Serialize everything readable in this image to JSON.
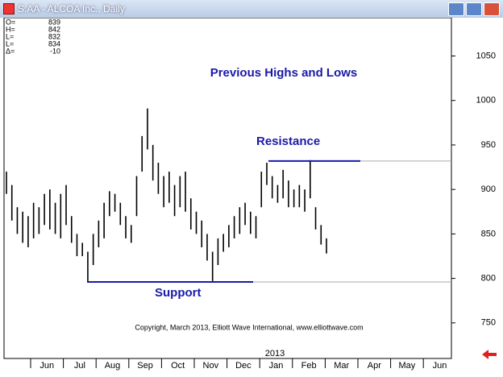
{
  "window_title": "S.AA - ALCOA Inc., Daily",
  "chart_data": {
    "type": "hilo",
    "title": "Previous Highs and Lows",
    "copyright": "Copyright, March 2013, Elliott Wave International, www.elliottwave.com",
    "info": [
      {
        "label": "O=",
        "value": "839"
      },
      {
        "label": "H=",
        "value": "842"
      },
      {
        "label": "L=",
        "value": "832"
      },
      {
        "label": "L=",
        "value": "834"
      },
      {
        "label": "Δ=",
        "value": "-10"
      }
    ],
    "months": [
      "Jun",
      "Jul",
      "Aug",
      "Sep",
      "Oct",
      "Nov",
      "Dec",
      "Jan",
      "Feb",
      "Mar",
      "Apr",
      "May",
      "Jun"
    ],
    "year_label": "2013",
    "levels": [
      {
        "label": "Resistance",
        "value": 932
      },
      {
        "label": "Support",
        "value": 796
      }
    ],
    "color": "#000000",
    "level_color": "#1a1aa8",
    "ylim": [
      710,
      1093
    ],
    "yticks": [
      750,
      800,
      850,
      900,
      950,
      1000,
      1050
    ],
    "grid": false,
    "categories": [
      null,
      null,
      null,
      null,
      null,
      null,
      null,
      null,
      null,
      null,
      null,
      null,
      null,
      null,
      null,
      null,
      null,
      null,
      null,
      null,
      null,
      null,
      null,
      null,
      null,
      null,
      null,
      null,
      null,
      null,
      null,
      null,
      null,
      null,
      null,
      null,
      null,
      null,
      null,
      null,
      null,
      null,
      null,
      null,
      null,
      null,
      null,
      null,
      null,
      null,
      null,
      null,
      null,
      null,
      null,
      null,
      null,
      null,
      null,
      null
    ],
    "highs": [
      920,
      905,
      880,
      875,
      870,
      885,
      880,
      895,
      900,
      885,
      895,
      905,
      870,
      850,
      840,
      830,
      850,
      865,
      885,
      898,
      895,
      885,
      870,
      860,
      915,
      960,
      991,
      950,
      930,
      915,
      920,
      905,
      915,
      920,
      890,
      875,
      865,
      850,
      830,
      845,
      850,
      860,
      870,
      880,
      885,
      875,
      870,
      920,
      930,
      915,
      905,
      922,
      910,
      900,
      905,
      900,
      933,
      880,
      860,
      845
    ],
    "lows": [
      895,
      865,
      850,
      840,
      835,
      845,
      850,
      860,
      855,
      850,
      845,
      860,
      840,
      825,
      825,
      796,
      815,
      835,
      845,
      870,
      875,
      860,
      845,
      840,
      870,
      920,
      945,
      910,
      895,
      880,
      885,
      870,
      880,
      875,
      855,
      850,
      835,
      820,
      797,
      815,
      830,
      835,
      845,
      850,
      860,
      850,
      845,
      880,
      905,
      890,
      885,
      890,
      880,
      880,
      880,
      875,
      890,
      855,
      838,
      828
    ]
  }
}
